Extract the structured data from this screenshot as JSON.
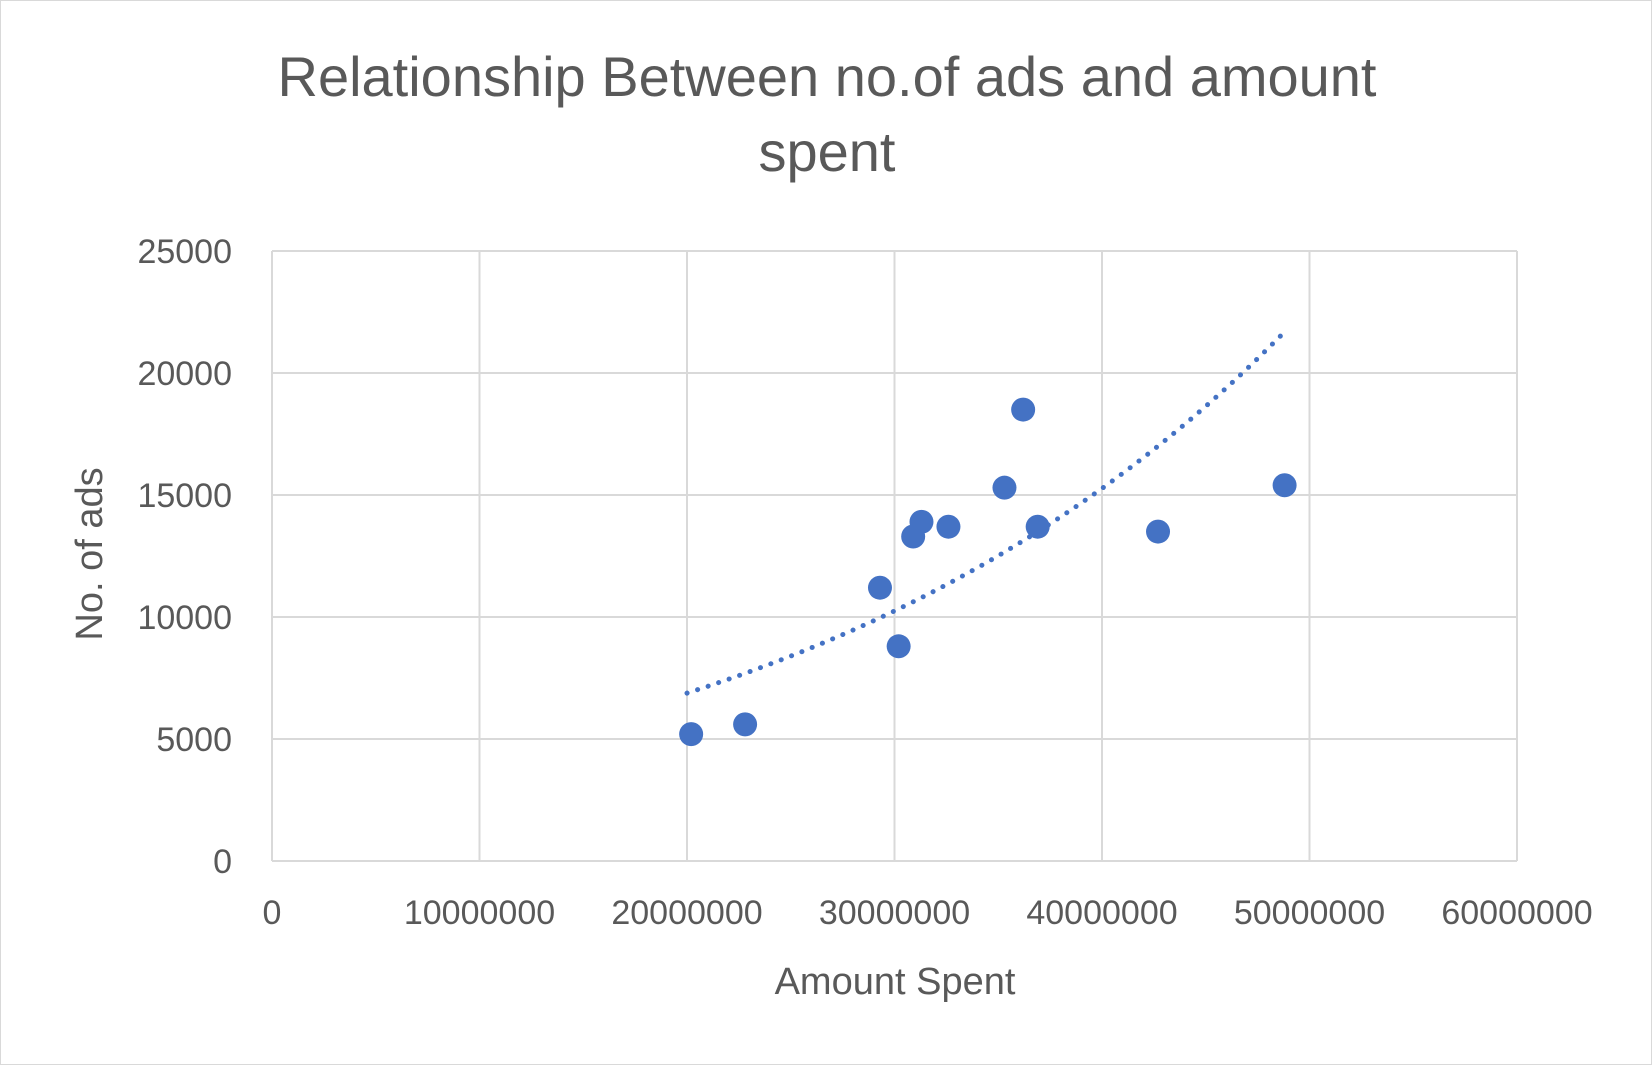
{
  "chart_data": {
    "type": "scatter",
    "title_lines": [
      "Relationship Between no.of ads and amount",
      "spent"
    ],
    "xlabel": "Amount Spent",
    "ylabel": "No. of ads",
    "xlim": [
      0,
      60000000
    ],
    "ylim": [
      0,
      25000
    ],
    "x_ticks": [
      0,
      10000000,
      20000000,
      30000000,
      40000000,
      50000000,
      60000000
    ],
    "y_ticks": [
      0,
      5000,
      10000,
      15000,
      20000,
      25000
    ],
    "grid": true,
    "legend": "none",
    "marker_color": "#4472C4",
    "trendline": {
      "type": "exponential",
      "style": "dotted",
      "color": "#4472C4",
      "x_range": [
        20000000,
        48700000
      ],
      "y_start": 6880,
      "y_end": 21600
    },
    "series": [
      {
        "points": [
          {
            "x": 20200000,
            "y": 5200
          },
          {
            "x": 22800000,
            "y": 5600
          },
          {
            "x": 29300000,
            "y": 11200
          },
          {
            "x": 30200000,
            "y": 8800
          },
          {
            "x": 30900000,
            "y": 13300
          },
          {
            "x": 31300000,
            "y": 13900
          },
          {
            "x": 32600000,
            "y": 13700
          },
          {
            "x": 35300000,
            "y": 15300
          },
          {
            "x": 36200000,
            "y": 18500
          },
          {
            "x": 36900000,
            "y": 13700
          },
          {
            "x": 42700000,
            "y": 13500
          },
          {
            "x": 48800000,
            "y": 15400
          }
        ]
      }
    ]
  }
}
